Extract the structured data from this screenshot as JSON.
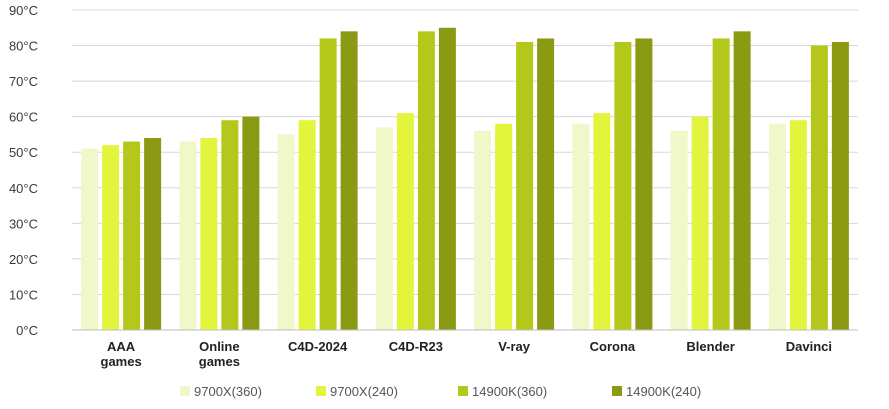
{
  "chart_data": {
    "type": "bar",
    "title": "",
    "xlabel": "",
    "ylabel": "",
    "ylim": [
      0,
      90
    ],
    "y_ticks": [
      0,
      10,
      20,
      30,
      40,
      50,
      60,
      70,
      80,
      90
    ],
    "y_tick_unit": "°C",
    "grid": true,
    "legend_position": "bottom",
    "categories": [
      [
        "AAA",
        "games"
      ],
      [
        "Online",
        "games"
      ],
      [
        "C4D-2024"
      ],
      [
        "C4D-R23"
      ],
      [
        "V-ray"
      ],
      [
        "Corona"
      ],
      [
        "Blender"
      ],
      [
        "Davinci"
      ]
    ],
    "series": [
      {
        "name": "9700X(360)",
        "color": "#f0f7c8",
        "values": [
          51,
          53,
          55,
          57,
          56,
          58,
          56,
          58
        ]
      },
      {
        "name": "9700X(240)",
        "color": "#e2f53c",
        "values": [
          52,
          54,
          59,
          61,
          58,
          61,
          60,
          59
        ]
      },
      {
        "name": "14900K(360)",
        "color": "#b3c81a",
        "values": [
          53,
          59,
          82,
          84,
          81,
          81,
          82,
          80
        ]
      },
      {
        "name": "14900K(240)",
        "color": "#8a9a12",
        "values": [
          54,
          60,
          84,
          85,
          82,
          82,
          84,
          81
        ]
      }
    ]
  }
}
